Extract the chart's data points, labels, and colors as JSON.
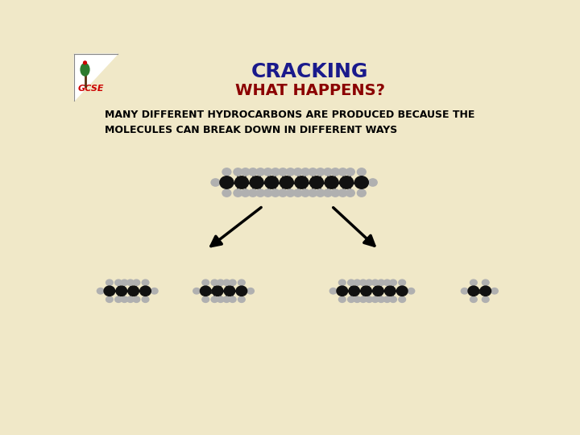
{
  "title": "CRACKING",
  "subtitle": "WHAT HAPPENS?",
  "body_text": "MANY DIFFERENT HYDROCARBONS ARE PRODUCED BECAUSE THE\nMOLECULES CAN BREAK DOWN IN DIFFERENT WAYS",
  "title_color": "#1a1a8c",
  "subtitle_color": "#8B0000",
  "body_text_color": "#000000",
  "background_color": "#F0E8C8",
  "title_fontsize": 18,
  "subtitle_fontsize": 14,
  "body_fontsize": 9,
  "carbon_color": "#111111",
  "hydrogen_color": "#b0b0b0",
  "bond_color": "#222222"
}
